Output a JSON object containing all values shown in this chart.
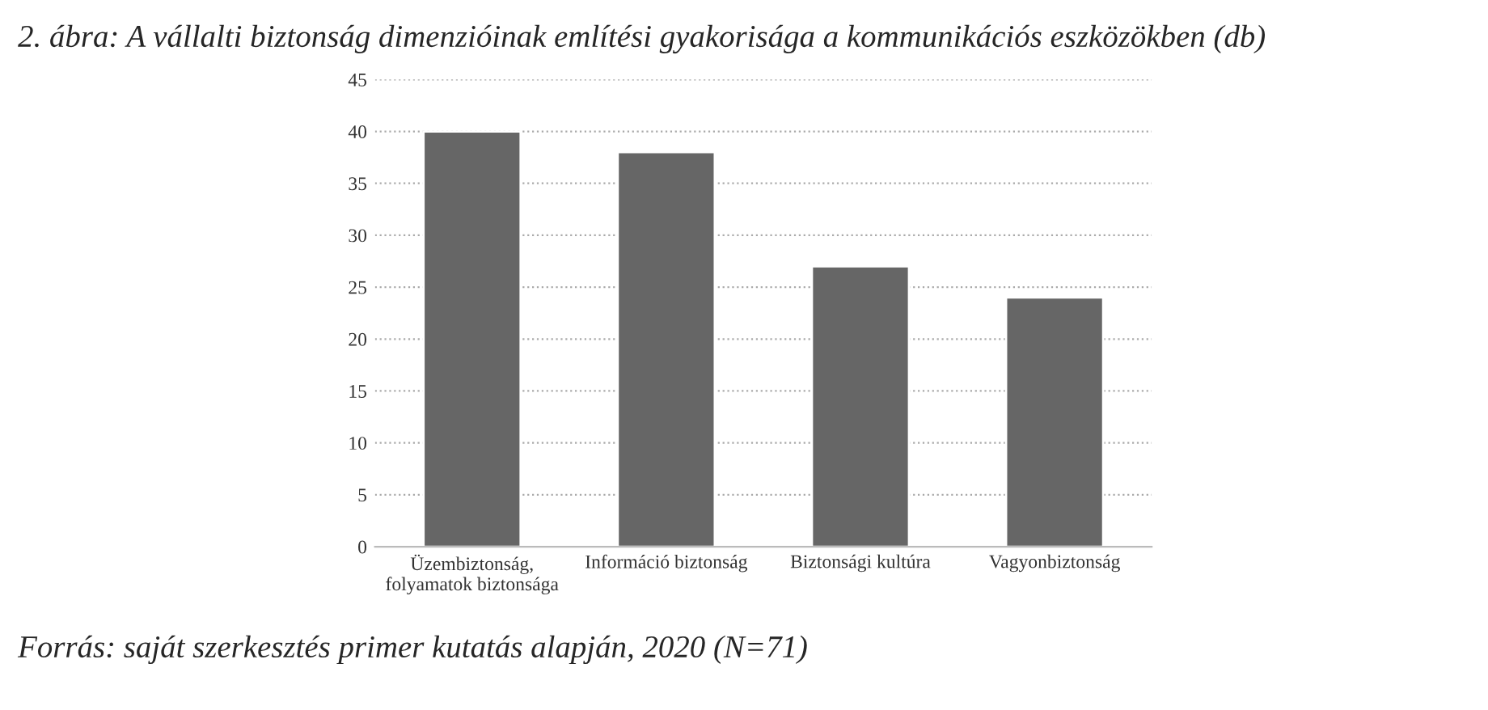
{
  "chart_data": {
    "type": "bar",
    "title": "2. ábra: A vállalti biztonság dimenzióinak említési gyakorisága a kommunikációs eszközökben (db)",
    "categories": [
      "Üzembiztonság,\nfolyamatok biztonsága",
      "Információ biztonság",
      "Biztonsági kultúra",
      "Vagyonbiztonság"
    ],
    "values": [
      40,
      38,
      27,
      24
    ],
    "color": "#666666",
    "ylim": [
      0,
      45
    ],
    "yticks": [
      0,
      5,
      10,
      15,
      20,
      25,
      30,
      35,
      40,
      45
    ],
    "grid": "y",
    "annotations": [
      "Forrás: saját szerkesztés primer kutatás alapján, 2020 (N=71)"
    ]
  }
}
